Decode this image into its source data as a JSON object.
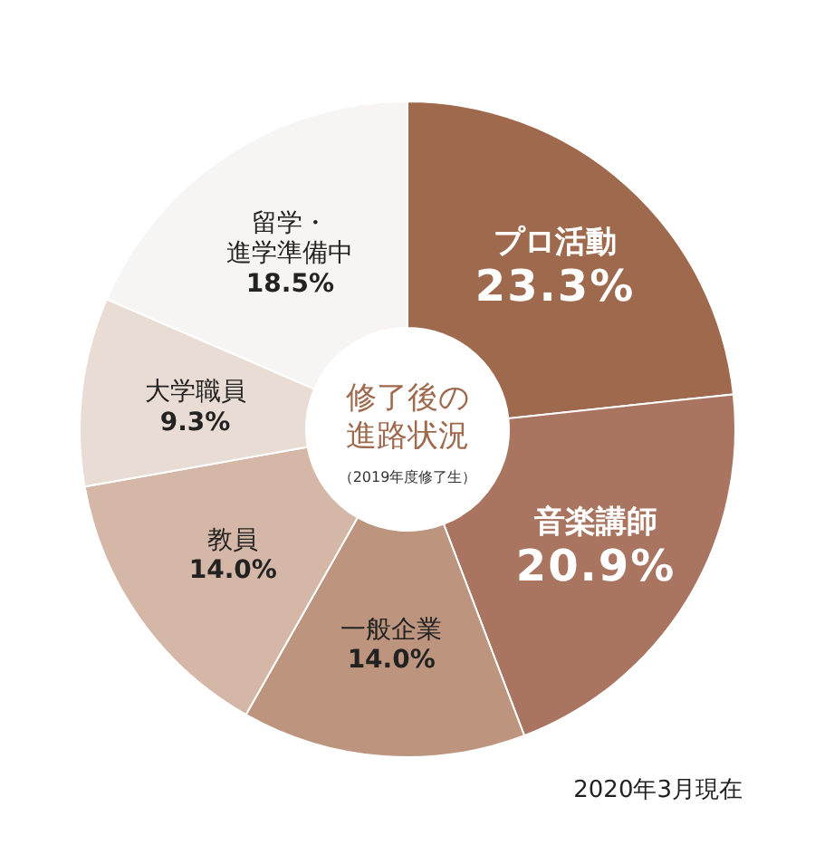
{
  "chart_data": {
    "type": "donut",
    "title": "修了後の進路状況",
    "subtitle": "（2019年度修了生）",
    "categories": [
      "プロ活動",
      "音楽講師",
      "一般企業",
      "教員",
      "大学職員",
      "留学・進学準備中"
    ],
    "values": [
      23.3,
      20.9,
      14.0,
      14.0,
      9.3,
      18.5
    ],
    "value_labels": [
      "23.3%",
      "20.9%",
      "14.0%",
      "14.0%",
      "9.3%",
      "18.5%"
    ],
    "colors": [
      "#9e694d",
      "#a97560",
      "#bd957e",
      "#d4b7a6",
      "#e9dcd4",
      "#f7f5f3"
    ],
    "annotations": [
      "2020年3月現在"
    ]
  }
}
